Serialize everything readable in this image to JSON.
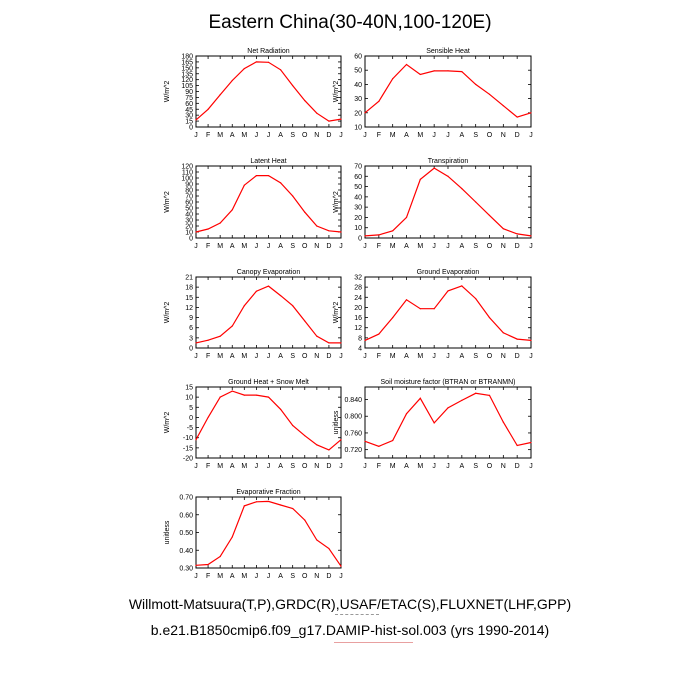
{
  "figure": {
    "title": "Eastern China(30-40N,100-120E)",
    "footer_line1": "Willmott-Matsuura(T,P),GRDC(R),USAF/ETAC(S),FLUXNET(LHF,GPP)",
    "footer_line2": "b.e21.B1850cmip6.f09_g17.DAMIP-hist-sol.003 (yrs 1990-2014)",
    "line_color": "#ff0000"
  },
  "chart_data": [
    {
      "type": "line",
      "title": "Net Radiation",
      "ylabel": "W/m^2",
      "categories": [
        "J",
        "F",
        "M",
        "A",
        "M",
        "J",
        "J",
        "A",
        "S",
        "O",
        "N",
        "D",
        "J"
      ],
      "ylim": [
        0,
        180
      ],
      "yticks": [
        0,
        15,
        30,
        45,
        60,
        75,
        90,
        105,
        120,
        135,
        150,
        165,
        180
      ],
      "ytick_labels": [
        "0",
        "15",
        "30",
        "45",
        "60",
        "75",
        "90",
        "105",
        "120",
        "135",
        "150",
        "165",
        "180"
      ],
      "values": [
        18,
        45,
        82,
        118,
        148,
        165,
        164,
        145,
        105,
        67,
        35,
        15,
        20
      ]
    },
    {
      "type": "line",
      "title": "Sensible Heat",
      "ylabel": "W/m^2",
      "categories": [
        "J",
        "F",
        "M",
        "A",
        "M",
        "J",
        "J",
        "A",
        "S",
        "O",
        "N",
        "D",
        "J"
      ],
      "ylim": [
        10,
        60
      ],
      "yticks": [
        10,
        20,
        30,
        40,
        50,
        60
      ],
      "ytick_labels": [
        "10",
        "20",
        "30",
        "40",
        "50",
        "60"
      ],
      "values": [
        20,
        28,
        44,
        54,
        47,
        49.5,
        49.5,
        49,
        40,
        33,
        25,
        17,
        20
      ]
    },
    {
      "type": "line",
      "title": "Latent Heat",
      "ylabel": "W/m^2",
      "categories": [
        "J",
        "F",
        "M",
        "A",
        "M",
        "J",
        "J",
        "A",
        "S",
        "O",
        "N",
        "D",
        "J"
      ],
      "ylim": [
        0,
        120
      ],
      "yticks": [
        0,
        10,
        20,
        30,
        40,
        50,
        60,
        70,
        80,
        90,
        100,
        110,
        120
      ],
      "ytick_labels": [
        "0",
        "10",
        "20",
        "30",
        "40",
        "50",
        "60",
        "70",
        "80",
        "90",
        "100",
        "110",
        "120"
      ],
      "values": [
        10,
        15,
        25,
        47,
        88,
        104,
        104,
        92,
        70,
        43,
        20,
        12,
        10
      ]
    },
    {
      "type": "line",
      "title": "Transpiration",
      "ylabel": "W/m^2",
      "categories": [
        "J",
        "F",
        "M",
        "A",
        "M",
        "J",
        "J",
        "A",
        "S",
        "O",
        "N",
        "D",
        "J"
      ],
      "ylim": [
        0,
        70
      ],
      "yticks": [
        0,
        10,
        20,
        30,
        40,
        50,
        60,
        70
      ],
      "ytick_labels": [
        "0",
        "10",
        "20",
        "30",
        "40",
        "50",
        "60",
        "70"
      ],
      "values": [
        2,
        3,
        7,
        20,
        57,
        68,
        60,
        48,
        35,
        22,
        9,
        4,
        2
      ]
    },
    {
      "type": "line",
      "title": "Canopy Evaporation",
      "ylabel": "W/m^2",
      "categories": [
        "J",
        "F",
        "M",
        "A",
        "M",
        "J",
        "J",
        "A",
        "S",
        "O",
        "N",
        "D",
        "J"
      ],
      "ylim": [
        0,
        21
      ],
      "yticks": [
        0,
        3,
        6,
        9,
        12,
        15,
        18,
        21
      ],
      "ytick_labels": [
        "0",
        "3",
        "6",
        "9",
        "12",
        "15",
        "18",
        "21"
      ],
      "values": [
        1.5,
        2.3,
        3.5,
        6.5,
        12.5,
        16.8,
        18.3,
        15.5,
        12.5,
        8,
        3.5,
        1.5,
        1.5
      ]
    },
    {
      "type": "line",
      "title": "Ground Evaporation",
      "ylabel": "W/m^2",
      "categories": [
        "J",
        "F",
        "M",
        "A",
        "M",
        "J",
        "J",
        "A",
        "S",
        "O",
        "N",
        "D",
        "J"
      ],
      "ylim": [
        4,
        32
      ],
      "yticks": [
        4,
        8,
        12,
        16,
        20,
        24,
        28,
        32
      ],
      "ytick_labels": [
        "4",
        "8",
        "12",
        "16",
        "20",
        "24",
        "28",
        "32"
      ],
      "values": [
        7,
        9.5,
        16,
        23,
        19.5,
        19.5,
        26.5,
        28.5,
        23.5,
        16,
        10,
        7.5,
        7
      ]
    },
    {
      "type": "line",
      "title": "Ground Heat + Snow Melt",
      "ylabel": "W/m^2",
      "categories": [
        "J",
        "F",
        "M",
        "A",
        "M",
        "J",
        "J",
        "A",
        "S",
        "O",
        "N",
        "D",
        "J"
      ],
      "ylim": [
        -20,
        15
      ],
      "yticks": [
        -20,
        -15,
        -10,
        -5,
        0,
        5,
        10,
        15
      ],
      "ytick_labels": [
        "-20",
        "-15",
        "-10",
        "-5",
        "0",
        "5",
        "10",
        "15"
      ],
      "values": [
        -11,
        0,
        10,
        13,
        11,
        11,
        10,
        4,
        -4,
        -9,
        -13.5,
        -16,
        -11
      ]
    },
    {
      "type": "line",
      "title": "Soil moisture factor (BTRAN or BTRANMN)",
      "ylabel": "unitless",
      "categories": [
        "J",
        "F",
        "M",
        "A",
        "M",
        "J",
        "J",
        "A",
        "S",
        "O",
        "N",
        "D",
        "J"
      ],
      "ylim": [
        0.7,
        0.87
      ],
      "yticks": [
        0.72,
        0.76,
        0.8,
        0.84
      ],
      "ytick_labels": [
        "0.720",
        "0.760",
        "0.800",
        "0.840"
      ],
      "values": [
        0.74,
        0.728,
        0.742,
        0.806,
        0.843,
        0.784,
        0.82,
        0.838,
        0.855,
        0.85,
        0.786,
        0.73,
        0.737
      ]
    },
    {
      "type": "line",
      "title": "Evaporative Fraction",
      "ylabel": "unitless",
      "categories": [
        "J",
        "F",
        "M",
        "A",
        "M",
        "J",
        "J",
        "A",
        "S",
        "O",
        "N",
        "D",
        "J"
      ],
      "ylim": [
        0.3,
        0.7
      ],
      "yticks": [
        0.3,
        0.4,
        0.5,
        0.6,
        0.7
      ],
      "ytick_labels": [
        "0.30",
        "0.40",
        "0.50",
        "0.60",
        "0.70"
      ],
      "values": [
        0.315,
        0.32,
        0.365,
        0.475,
        0.65,
        0.673,
        0.675,
        0.655,
        0.635,
        0.57,
        0.458,
        0.41,
        0.31
      ]
    }
  ]
}
